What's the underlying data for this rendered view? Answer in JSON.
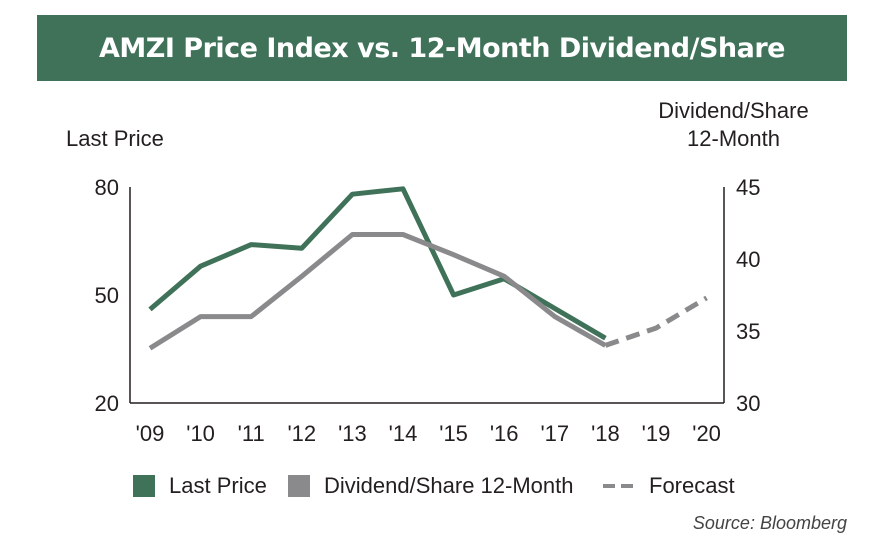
{
  "colors": {
    "title_bg": "#3f7259",
    "last_price": "#3f7259",
    "dividend": "#8a8a8c",
    "forecast": "#8a8a8c"
  },
  "legend": {
    "last_price": "Last Price",
    "dividend": "Dividend/Share 12-Month",
    "forecast": "Forecast"
  },
  "source": "Source: Bloomberg",
  "chart_data": {
    "type": "line",
    "title": "AMZI Price Index vs. 12-Month Dividend/Share",
    "ylabel_left": "Last Price",
    "ylabel_right_line1": "Dividend/Share",
    "ylabel_right_line2": "12-Month",
    "categories": [
      "'09",
      "'10",
      "'11",
      "'12",
      "'13",
      "'14",
      "'15",
      "'16",
      "'17",
      "'18",
      "'19",
      "'20"
    ],
    "ylim_left": [
      20,
      80
    ],
    "yticks_left": [
      "80",
      "50",
      "20"
    ],
    "ylim_right": [
      30,
      45
    ],
    "yticks_right": [
      "45",
      "40",
      "35",
      "30"
    ],
    "grid": false,
    "legend_position": "bottom",
    "series": [
      {
        "name": "Last Price",
        "axis": "left",
        "style": "solid",
        "values": [
          46,
          58,
          64,
          63,
          78,
          79.5,
          50,
          54.5,
          null,
          38,
          null,
          null
        ]
      },
      {
        "name": "Dividend/Share 12-Month",
        "axis": "right",
        "style": "solid",
        "values": [
          33.8,
          36,
          36,
          38.8,
          41.7,
          41.7,
          40.3,
          38.8,
          36,
          34,
          null,
          null
        ]
      },
      {
        "name": "Forecast",
        "axis": "right",
        "style": "dashed",
        "values": [
          null,
          null,
          null,
          null,
          null,
          null,
          null,
          null,
          null,
          34,
          35.2,
          37.3
        ]
      }
    ]
  }
}
